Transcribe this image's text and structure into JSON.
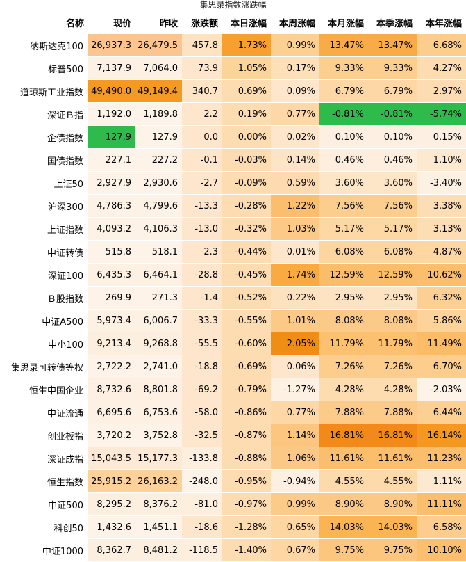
{
  "title": "集思录指数涨跌幅",
  "table": {
    "columns": [
      "名称",
      "现价",
      "昨收",
      "涨跌额",
      "本日涨幅",
      "本周涨幅",
      "本月涨幅",
      "本季涨幅",
      "本年涨幅"
    ],
    "rows": [
      [
        "纳斯达克100",
        "26,937.3",
        "26,479.5",
        "457.8",
        "1.73%",
        "0.99%",
        "13.47%",
        "13.47%",
        "6.68%"
      ],
      [
        "标普500",
        "7,137.9",
        "7,064.0",
        "73.9",
        "1.05%",
        "0.17%",
        "9.33%",
        "9.33%",
        "4.27%"
      ],
      [
        "道琼斯工业指数",
        "49,490.0",
        "49,149.4",
        "340.7",
        "0.69%",
        "0.09%",
        "6.79%",
        "6.79%",
        "2.97%"
      ],
      [
        "深证Ｂ指",
        "1,192.0",
        "1,189.8",
        "2.2",
        "0.19%",
        "0.77%",
        "-0.81%",
        "-0.81%",
        "-5.74%"
      ],
      [
        "企债指数",
        "127.9",
        "127.9",
        "0.0",
        "0.00%",
        "0.02%",
        "0.10%",
        "0.10%",
        "0.15%"
      ],
      [
        "国债指数",
        "227.1",
        "227.2",
        "-0.1",
        "-0.03%",
        "0.14%",
        "0.46%",
        "0.46%",
        "1.10%"
      ],
      [
        "上证50",
        "2,927.9",
        "2,930.6",
        "-2.7",
        "-0.09%",
        "0.59%",
        "3.60%",
        "3.60%",
        "-3.40%"
      ],
      [
        "沪深300",
        "4,786.3",
        "4,799.6",
        "-13.3",
        "-0.28%",
        "1.22%",
        "7.56%",
        "7.56%",
        "3.38%"
      ],
      [
        "上证指数",
        "4,093.2",
        "4,106.3",
        "-13.0",
        "-0.32%",
        "1.03%",
        "5.17%",
        "5.17%",
        "3.13%"
      ],
      [
        "中证转债",
        "515.8",
        "518.1",
        "-2.3",
        "-0.44%",
        "0.01%",
        "6.08%",
        "6.08%",
        "4.87%"
      ],
      [
        "深证100",
        "6,435.3",
        "6,464.1",
        "-28.8",
        "-0.45%",
        "1.74%",
        "12.59%",
        "12.59%",
        "10.62%"
      ],
      [
        "Ｂ股指数",
        "269.9",
        "271.3",
        "-1.4",
        "-0.52%",
        "0.22%",
        "2.95%",
        "2.95%",
        "6.32%"
      ],
      [
        "中证A500",
        "5,973.4",
        "6,006.7",
        "-33.3",
        "-0.55%",
        "1.01%",
        "8.08%",
        "8.08%",
        "5.86%"
      ],
      [
        "中小100",
        "9,213.4",
        "9,268.8",
        "-55.5",
        "-0.60%",
        "2.05%",
        "11.79%",
        "11.79%",
        "11.49%"
      ],
      [
        "集思录可转债等权",
        "2,722.2",
        "2,741.0",
        "-18.8",
        "-0.69%",
        "0.06%",
        "7.26%",
        "7.26%",
        "6.70%"
      ],
      [
        "恒生中国企业",
        "8,732.6",
        "8,801.8",
        "-69.2",
        "-0.79%",
        "-1.27%",
        "4.28%",
        "4.28%",
        "-2.03%"
      ],
      [
        "中证流通",
        "6,695.6",
        "6,753.6",
        "-58.0",
        "-0.86%",
        "0.77%",
        "7.88%",
        "7.88%",
        "6.44%"
      ],
      [
        "创业板指",
        "3,720.2",
        "3,752.8",
        "-32.5",
        "-0.87%",
        "1.14%",
        "16.81%",
        "16.81%",
        "16.14%"
      ],
      [
        "深证成指",
        "15,043.5",
        "15,177.3",
        "-133.8",
        "-0.88%",
        "1.06%",
        "11.61%",
        "11.61%",
        "11.23%"
      ],
      [
        "恒生指数",
        "25,915.2",
        "26,163.2",
        "-248.0",
        "-0.95%",
        "-0.94%",
        "4.55%",
        "4.55%",
        "1.11%"
      ],
      [
        "中证500",
        "8,295.2",
        "8,376.2",
        "-81.0",
        "-0.97%",
        "0.99%",
        "8.90%",
        "8.90%",
        "11.11%"
      ],
      [
        "科创50",
        "1,432.6",
        "1,451.1",
        "-18.6",
        "-1.28%",
        "0.65%",
        "14.03%",
        "14.03%",
        "6.58%"
      ],
      [
        "中证1000",
        "8,362.7",
        "8,481.2",
        "-118.5",
        "-1.40%",
        "0.67%",
        "9.75%",
        "9.75%",
        "10.10%"
      ]
    ],
    "cell_colors": [
      [
        "#fcc590",
        "#fcc590",
        "#fde3c2",
        "#f7a030",
        "#fcd092",
        "#f9ab48",
        "#f9ab48",
        "#fccd8c"
      ],
      [
        "#fdf1e4",
        "#fdf1e4",
        "#fde6cc",
        "#fcd49a",
        "#fde0b8",
        "#fccf90",
        "#fccf90",
        "#fddcb0"
      ],
      [
        "#f49a22",
        "#f49a22",
        "#fde4c4",
        "#fcdcb0",
        "#fde6cc",
        "#fdd8a6",
        "#fdd8a6",
        "#fddcb4"
      ],
      [
        "#fdf3e8",
        "#fdf3e8",
        "#fde6cc",
        "#fcdcb0",
        "#fdd8a6",
        "#2fbb4c",
        "#2fbb4c",
        "#2fbb4c"
      ],
      [
        "#2fbb4c",
        "#fdf3e8",
        "#fde6cc",
        "#fcdcb0",
        "#fde6cc",
        "#fdf0e2",
        "#fdf0e2",
        "#fdf0e2"
      ],
      [
        "#fdf3e8",
        "#fdf3e8",
        "#fde6cc",
        "#fcdcb0",
        "#fde4c6",
        "#fdeedd",
        "#fdeedd",
        "#fde8d0"
      ],
      [
        "#fdf3e8",
        "#fdf3e8",
        "#fde6cc",
        "#fcdcb0",
        "#fddab0",
        "#fde6c8",
        "#fde6c8",
        "#fdf1e4"
      ],
      [
        "#fdf2e6",
        "#fdf2e6",
        "#fde6cc",
        "#fcdcb0",
        "#fbbe6e",
        "#fcce8e",
        "#fcce8e",
        "#fdddb4"
      ],
      [
        "#fdf2e6",
        "#fdf2e6",
        "#fde6cc",
        "#fcdcb0",
        "#fcca86",
        "#fdd8a4",
        "#fdd8a4",
        "#fdddb4"
      ],
      [
        "#fdf3e8",
        "#fdf3e8",
        "#fde6cc",
        "#fcdcb0",
        "#fde6cc",
        "#fdd5a0",
        "#fdd5a0",
        "#fdd6a2"
      ],
      [
        "#fdf1e4",
        "#fdf1e4",
        "#fde6cc",
        "#fcdcb0",
        "#f9aa40",
        "#fbbd6a",
        "#fbbd6a",
        "#fbbe6c"
      ],
      [
        "#fdf3e8",
        "#fdf3e8",
        "#fde6cc",
        "#fcdcb0",
        "#fde2c0",
        "#fde3c2",
        "#fde3c2",
        "#fccf92"
      ],
      [
        "#fdf1e4",
        "#fdf1e4",
        "#fde6cc",
        "#fcdcb0",
        "#fcca86",
        "#fcca88",
        "#fcca88",
        "#fdd39a"
      ],
      [
        "#fdefe0",
        "#fdefe0",
        "#fde6cc",
        "#fcdcb0",
        "#f08d14",
        "#fbc070",
        "#fbc070",
        "#fbbc68"
      ],
      [
        "#fdf3e8",
        "#fdf3e8",
        "#fde6cc",
        "#fcdcb0",
        "#fde6cc",
        "#fccd8c",
        "#fccd8c",
        "#fccd8c"
      ],
      [
        "#fdf0e2",
        "#fdf0e2",
        "#fde6cc",
        "#fcdcb0",
        "#fdf1e4",
        "#fddcb0",
        "#fddcb0",
        "#fdf3e8"
      ],
      [
        "#fdf1e4",
        "#fdf1e4",
        "#fde6cc",
        "#fcdcb0",
        "#fdd8a6",
        "#fccb8a",
        "#fccb8a",
        "#fcd092"
      ],
      [
        "#fdf3e8",
        "#fdf3e8",
        "#fde6cc",
        "#fcdcb0",
        "#fcc680",
        "#f28a1a",
        "#f28a1a",
        "#f49822"
      ],
      [
        "#fde9d4",
        "#fde9d4",
        "#fdeedd",
        "#fcdcb0",
        "#fcc886",
        "#fbbe6c",
        "#fbbe6c",
        "#fbbe6c"
      ],
      [
        "#fcd29a",
        "#fcd29a",
        "#fdf3e8",
        "#fcdcb0",
        "#fdf0e2",
        "#fddaac",
        "#fddaac",
        "#fde8d0"
      ],
      [
        "#fdefe0",
        "#fdefe0",
        "#fdeedd",
        "#fcdcb0",
        "#fccb8a",
        "#fcc885",
        "#fcc885",
        "#fbbe6c"
      ],
      [
        "#fdf3e8",
        "#fdf3e8",
        "#fde6cc",
        "#fcdcb0",
        "#fdd6a2",
        "#fab552",
        "#fab552",
        "#fccd8c"
      ],
      [
        "#fdefe0",
        "#fdefe0",
        "#fdeedd",
        "#fcdcb0",
        "#fdd6a2",
        "#fcc67e",
        "#fcc67e",
        "#fbbf6e"
      ]
    ]
  }
}
